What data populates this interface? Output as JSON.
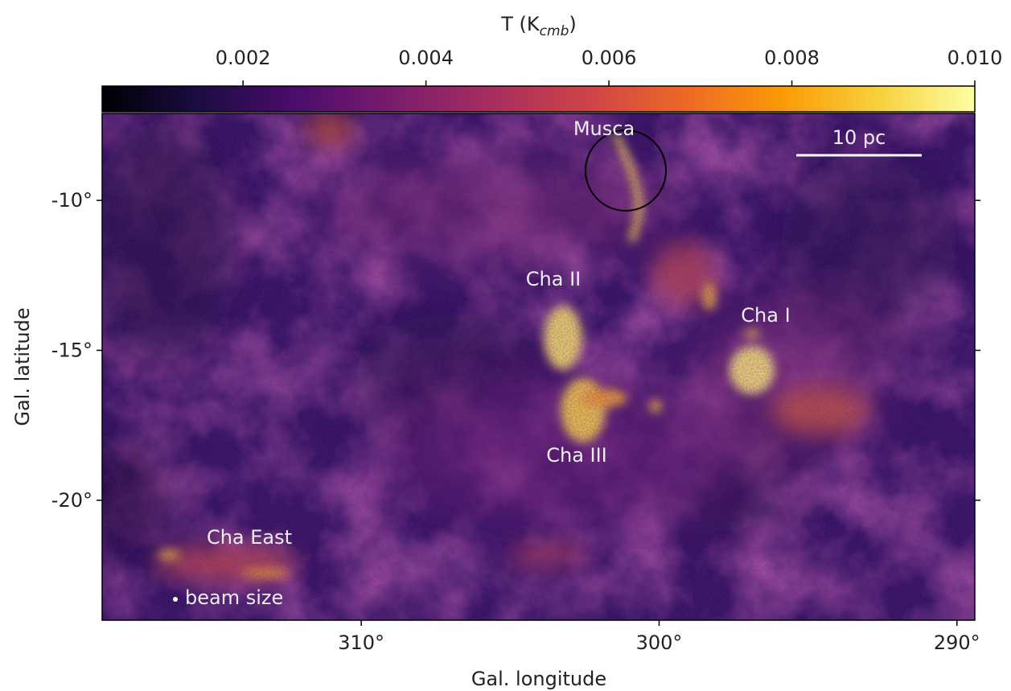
{
  "chart_data": {
    "type": "image",
    "xlabel": "Gal. longitude",
    "ylabel": "Gal. latitude",
    "xlim": [
      318.7,
      289.4
    ],
    "xticks": [
      {
        "value": 310,
        "label": "310°"
      },
      {
        "value": 300,
        "label": "300°"
      },
      {
        "value": 290,
        "label": "290°"
      }
    ],
    "ylim": [
      -24.0,
      -7.1
    ],
    "yticks": [
      {
        "value": -10,
        "label": "-10°"
      },
      {
        "value": -15,
        "label": "-15°"
      },
      {
        "value": -20,
        "label": "-20°"
      }
    ],
    "colorbar": {
      "label_parts": [
        "T (K",
        "cmb",
        ")"
      ],
      "lim": [
        0.00046,
        0.01
      ],
      "ticks": [
        {
          "value": 0.002,
          "label": "0.002"
        },
        {
          "value": 0.004,
          "label": "0.004"
        },
        {
          "value": 0.006,
          "label": "0.006"
        },
        {
          "value": 0.008,
          "label": "0.008"
        },
        {
          "value": 0.01,
          "label": "0.010"
        }
      ],
      "colormap": "inferno"
    },
    "annotations": [
      "Musca",
      "Cha II",
      "Cha I",
      "Cha III",
      "Cha East",
      "beam size"
    ],
    "scale_bar": "10 pc"
  }
}
